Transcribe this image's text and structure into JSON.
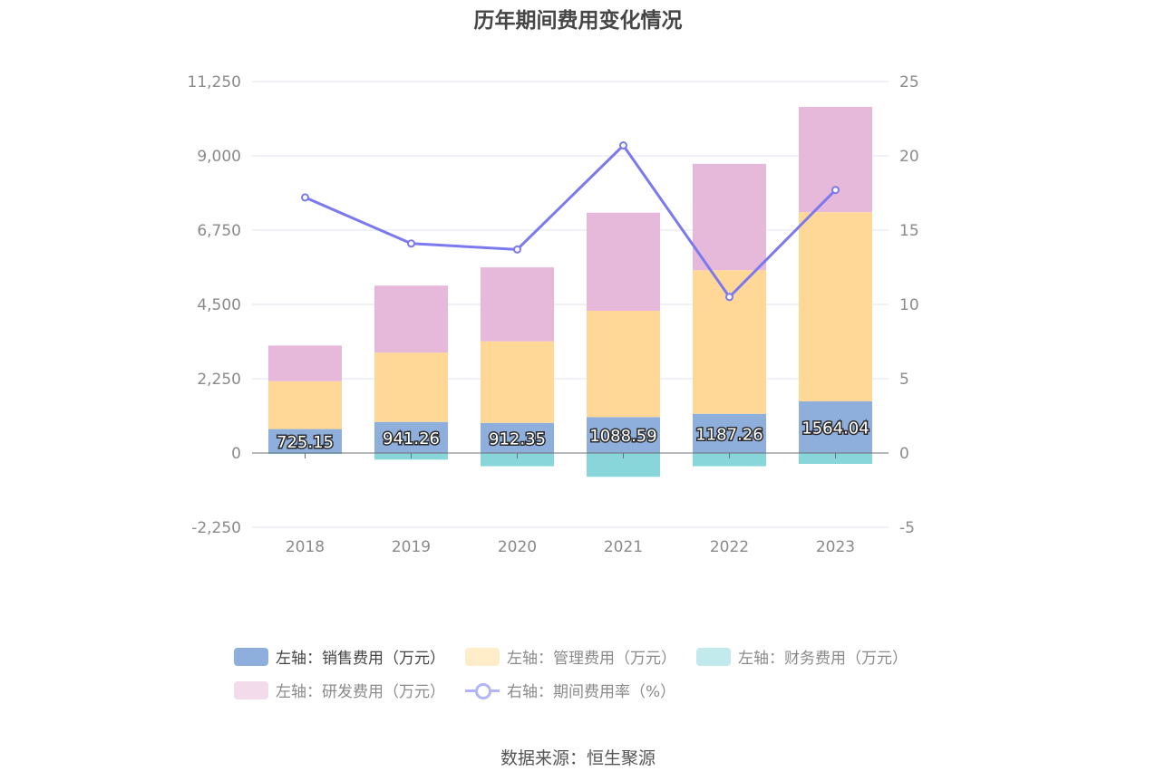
{
  "chart_data": {
    "type": "bar",
    "title": "历年期间费用变化情况",
    "categories": [
      "2018",
      "2019",
      "2020",
      "2021",
      "2022",
      "2023"
    ],
    "y_left": {
      "ticks": [
        "11,250",
        "9,000",
        "6,750",
        "4,500",
        "2,250",
        "0",
        "-2,250"
      ],
      "ylim": [
        -2250,
        11250
      ]
    },
    "y_right": {
      "ticks": [
        "25",
        "20",
        "15",
        "10",
        "5",
        "0",
        "-5"
      ],
      "ylim": [
        -5,
        25
      ]
    },
    "series": [
      {
        "name": "左轴：销售费用（万元）",
        "type": "bar",
        "axis": "left",
        "color": "#8eaedc",
        "values": [
          725.15,
          941.26,
          912.35,
          1088.59,
          1187.26,
          1564.04
        ],
        "labels": [
          "725.15",
          "941.26",
          "912.35",
          "1088.59",
          "1187.26",
          "1564.04"
        ]
      },
      {
        "name": "左轴：管理费用（万元）",
        "type": "bar",
        "axis": "left",
        "color": "#ffd898",
        "values": [
          1450,
          2100,
          2470,
          3220,
          4350,
          5730
        ]
      },
      {
        "name": "左轴：财务费用（万元）",
        "type": "bar",
        "axis": "left",
        "color": "#88d6da",
        "values": [
          -30,
          -200,
          -400,
          -720,
          -400,
          -330
        ]
      },
      {
        "name": "左轴：研发费用（万元）",
        "type": "bar",
        "axis": "left",
        "color": "#e6b9da",
        "values": [
          1080,
          2030,
          2240,
          2970,
          3220,
          3190
        ]
      },
      {
        "name": "右轴：期间费用率（%）",
        "type": "line",
        "axis": "right",
        "color": "#7b79ee",
        "values": [
          17.2,
          14.1,
          13.7,
          20.7,
          10.5,
          17.7
        ]
      }
    ],
    "grid": true,
    "legend_position": "bottom"
  },
  "legend": {
    "items": [
      {
        "label": "左轴：销售费用（万元）",
        "color": "#8eaedc",
        "active": true
      },
      {
        "label": "左轴：管理费用（万元）",
        "color": "#ffecc8",
        "active": false
      },
      {
        "label": "左轴：财务费用（万元）",
        "color": "#c2e9eb",
        "active": false
      },
      {
        "label": "左轴：研发费用（万元）",
        "color": "#f2dcec",
        "active": false
      },
      {
        "label": "右轴：期间费用率（%）",
        "color": "#b3b5f8",
        "active": false
      }
    ]
  },
  "source": "数据来源：恒生聚源"
}
